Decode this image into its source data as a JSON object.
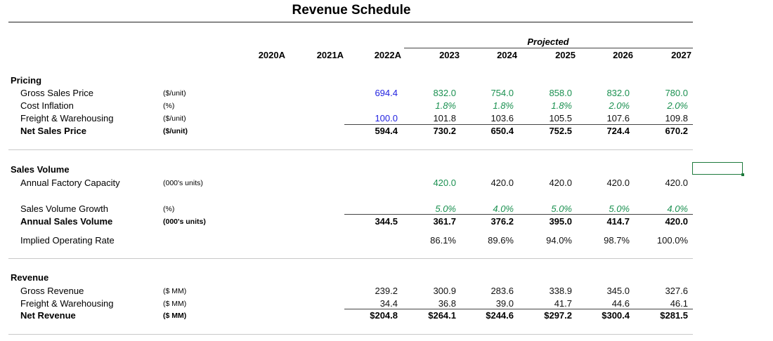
{
  "title": "Revenue Schedule",
  "projected_label": "Projected",
  "years": [
    "2020A",
    "2021A",
    "2022A",
    "2023",
    "2024",
    "2025",
    "2026",
    "2027"
  ],
  "sections": {
    "pricing": {
      "label": "Pricing",
      "rows": {
        "gross_sales_price": {
          "label": "Gross Sales Price",
          "unit": "($/unit)",
          "values": [
            "",
            "",
            "694.4",
            "832.0",
            "754.0",
            "858.0",
            "832.0",
            "780.0"
          ]
        },
        "cost_inflation": {
          "label": "Cost Inflation",
          "unit": "(%)",
          "values": [
            "",
            "",
            "",
            "1.8%",
            "1.8%",
            "1.8%",
            "2.0%",
            "2.0%"
          ]
        },
        "freight_warehousing": {
          "label": "Freight & Warehousing",
          "unit": "($/unit)",
          "values": [
            "",
            "",
            "100.0",
            "101.8",
            "103.6",
            "105.5",
            "107.6",
            "109.8"
          ]
        },
        "net_sales_price": {
          "label": "Net Sales Price",
          "unit": "($/unit)",
          "values": [
            "",
            "",
            "594.4",
            "730.2",
            "650.4",
            "752.5",
            "724.4",
            "670.2"
          ]
        }
      }
    },
    "sales_volume": {
      "label": "Sales Volume",
      "rows": {
        "annual_factory_capacity": {
          "label": "Annual Factory Capacity",
          "unit": "(000's units)",
          "values": [
            "",
            "",
            "",
            "420.0",
            "420.0",
            "420.0",
            "420.0",
            "420.0"
          ]
        },
        "sales_volume_growth": {
          "label": "Sales Volume Growth",
          "unit": "(%)",
          "values": [
            "",
            "",
            "",
            "5.0%",
            "4.0%",
            "5.0%",
            "5.0%",
            "4.0%"
          ]
        },
        "annual_sales_volume": {
          "label": "Annual Sales Volume",
          "unit": "(000's units)",
          "values": [
            "",
            "",
            "344.5",
            "361.7",
            "376.2",
            "395.0",
            "414.7",
            "420.0"
          ]
        },
        "implied_operating_rate": {
          "label": "Implied Operating Rate",
          "unit": "",
          "values": [
            "",
            "",
            "",
            "86.1%",
            "89.6%",
            "94.0%",
            "98.7%",
            "100.0%"
          ]
        }
      }
    },
    "revenue": {
      "label": "Revenue",
      "rows": {
        "gross_revenue": {
          "label": "Gross Revenue",
          "unit": "($ MM)",
          "values": [
            "",
            "",
            "239.2",
            "300.9",
            "283.6",
            "338.9",
            "345.0",
            "327.6"
          ]
        },
        "freight_warehousing": {
          "label": "Freight & Warehousing",
          "unit": "($ MM)",
          "values": [
            "",
            "",
            "34.4",
            "36.8",
            "39.0",
            "41.7",
            "44.6",
            "46.1"
          ]
        },
        "net_revenue": {
          "label": "Net Revenue",
          "unit": "($ MM)",
          "values": [
            "",
            "",
            "$204.8",
            "$264.1",
            "$244.6",
            "$297.2",
            "$300.4",
            "$281.5"
          ]
        }
      }
    }
  },
  "colors": {
    "input_blue": "#1f1fe0",
    "assumption_green": "#1a9050",
    "formula_black": "#111111",
    "selection_border": "#1e7a3c"
  }
}
